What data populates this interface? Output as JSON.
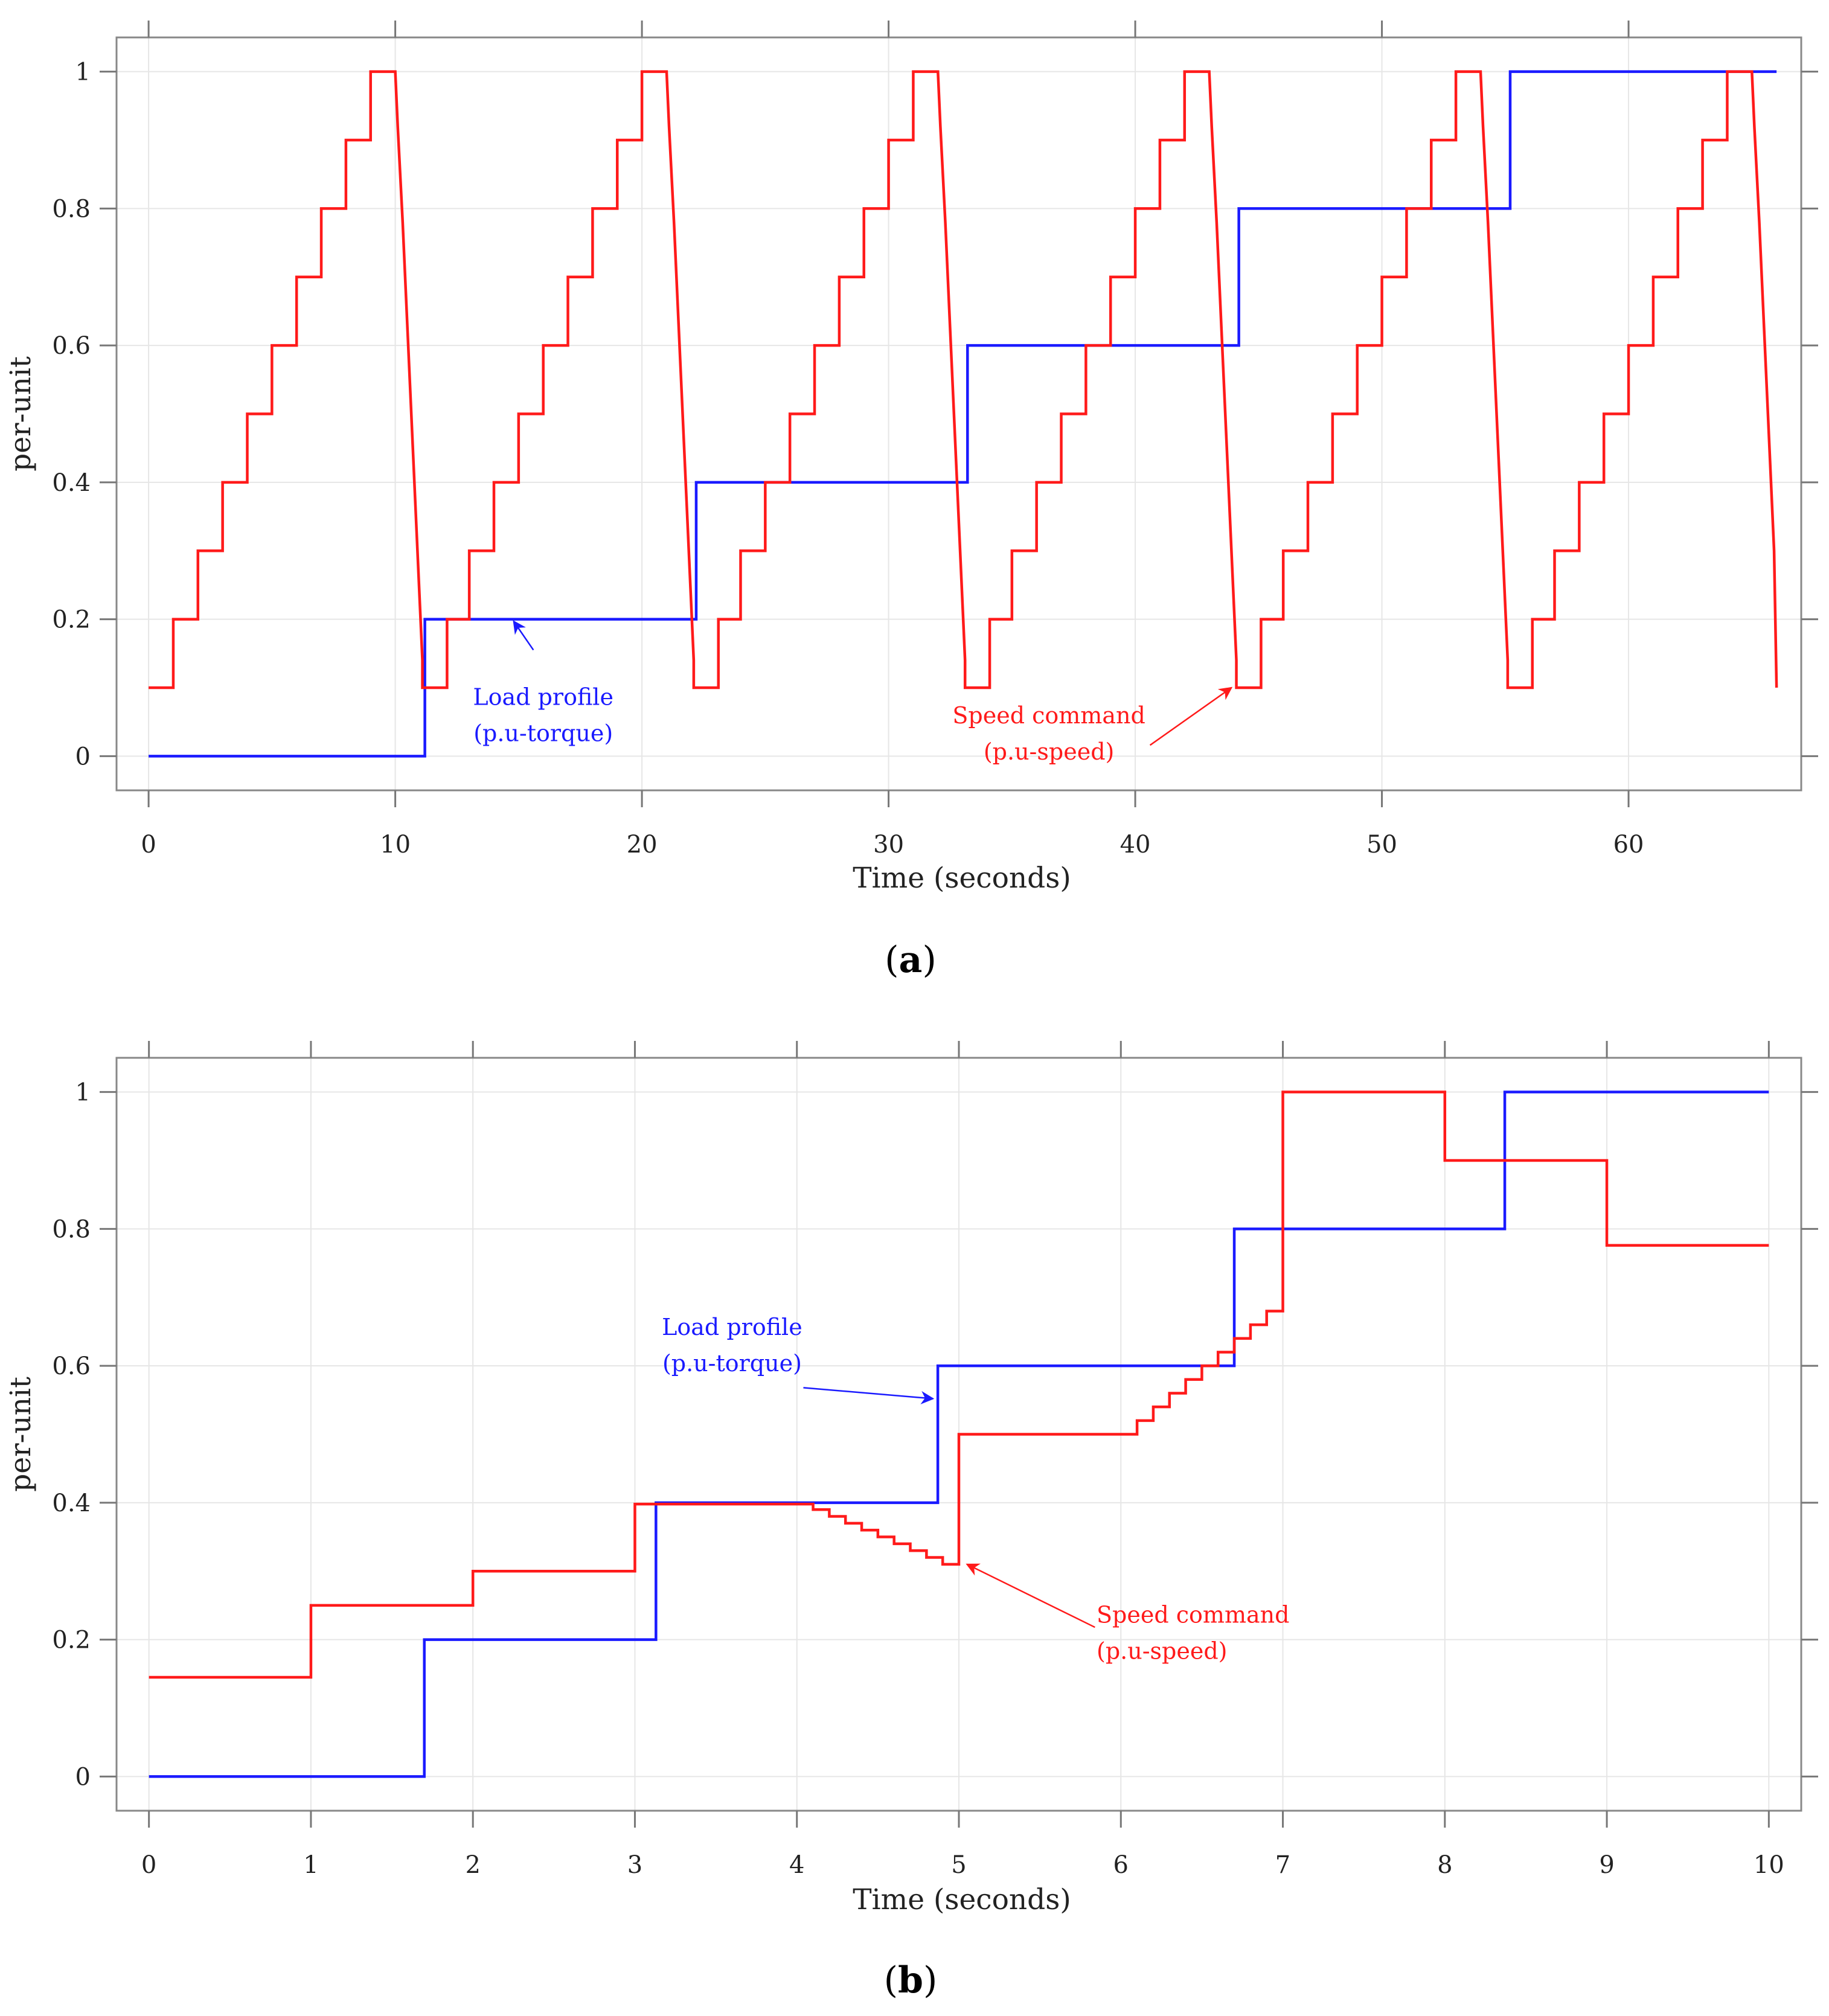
{
  "chart_data": [
    {
      "panel_label": "a",
      "type": "line",
      "xlabel": "Time (seconds)",
      "ylabel": "per-unit",
      "xlim": [
        -1.3,
        67
      ],
      "ylim": [
        -0.05,
        1.05
      ],
      "xticks": [
        0,
        10,
        20,
        30,
        40,
        50,
        60
      ],
      "yticks": [
        0,
        0.2,
        0.4,
        0.6,
        0.8,
        1
      ],
      "xtick_labels": [
        "0",
        "10",
        "20",
        "30",
        "40",
        "50",
        "60"
      ],
      "ytick_labels": [
        "0",
        "0.2",
        "0.4",
        "0.6",
        "0.8",
        "1"
      ],
      "grid": true,
      "colors": {
        "load": "#1a1aff",
        "speed": "#ff1a1a"
      },
      "series": [
        {
          "name": "Load profile (p.u-torque)",
          "color": "#1a1aff",
          "step": true,
          "x": [
            0,
            11.2,
            22.2,
            33.2,
            44.2,
            55.2,
            66
          ],
          "y": [
            0,
            0.2,
            0.4,
            0.6,
            0.8,
            1.0,
            1.0
          ]
        },
        {
          "name": "Speed command (p.u-speed)",
          "color": "#ff1a1a",
          "step": false,
          "x": [
            0,
            1,
            1,
            2,
            2,
            3,
            3,
            4,
            4,
            5,
            5,
            6,
            6,
            7,
            7,
            8,
            8,
            9,
            9,
            10,
            10.1,
            10.3,
            10.5,
            10.7,
            10.9,
            11.1,
            11.1,
            12.1,
            12.1,
            13,
            13,
            14,
            14,
            15,
            15,
            16,
            16,
            17,
            17,
            18,
            18,
            19,
            19,
            20,
            20,
            21,
            21.1,
            21.3,
            21.5,
            21.7,
            21.9,
            22.1,
            22.1,
            23.1,
            23.1,
            24,
            24,
            25,
            25,
            26,
            26,
            27,
            27,
            28,
            28,
            29,
            29,
            30,
            30,
            31,
            31,
            32,
            32.1,
            32.3,
            32.5,
            32.7,
            32.9,
            33.1,
            33.1,
            34.1,
            34.1,
            35,
            35,
            36,
            36,
            37,
            37,
            38,
            38,
            39,
            39,
            40,
            40,
            41,
            41,
            42,
            42,
            43,
            43.1,
            43.3,
            43.5,
            43.7,
            43.9,
            44.1,
            44.1,
            45.1,
            45.1,
            46,
            46,
            47,
            47,
            48,
            48,
            49,
            49,
            50,
            50,
            51,
            51,
            52,
            52,
            53,
            53,
            54,
            54.1,
            54.3,
            54.5,
            54.7,
            54.9,
            55.1,
            55.1,
            56.1,
            56.1,
            57,
            57,
            58,
            58,
            59,
            59,
            60,
            60,
            61,
            61,
            62,
            62,
            63,
            63,
            64,
            64,
            65,
            65.1,
            65.3,
            65.5,
            65.7,
            65.9,
            66
          ],
          "y": [
            0.1,
            0.1,
            0.2,
            0.2,
            0.3,
            0.3,
            0.4,
            0.4,
            0.5,
            0.5,
            0.6,
            0.6,
            0.7,
            0.7,
            0.8,
            0.8,
            0.9,
            0.9,
            1.0,
            1.0,
            0.92,
            0.78,
            0.62,
            0.46,
            0.3,
            0.14,
            0.1,
            0.1,
            0.2,
            0.2,
            0.3,
            0.3,
            0.4,
            0.4,
            0.5,
            0.5,
            0.6,
            0.6,
            0.7,
            0.7,
            0.8,
            0.8,
            0.9,
            0.9,
            1.0,
            1.0,
            0.92,
            0.78,
            0.62,
            0.46,
            0.3,
            0.14,
            0.1,
            0.1,
            0.2,
            0.2,
            0.3,
            0.3,
            0.4,
            0.4,
            0.5,
            0.5,
            0.6,
            0.6,
            0.7,
            0.7,
            0.8,
            0.8,
            0.9,
            0.9,
            1.0,
            1.0,
            0.92,
            0.78,
            0.62,
            0.46,
            0.3,
            0.14,
            0.1,
            0.1,
            0.2,
            0.2,
            0.3,
            0.3,
            0.4,
            0.4,
            0.5,
            0.5,
            0.6,
            0.6,
            0.7,
            0.7,
            0.8,
            0.8,
            0.9,
            0.9,
            1.0,
            1.0,
            0.92,
            0.78,
            0.62,
            0.46,
            0.3,
            0.14,
            0.1,
            0.1,
            0.2,
            0.2,
            0.3,
            0.3,
            0.4,
            0.4,
            0.5,
            0.5,
            0.6,
            0.6,
            0.7,
            0.7,
            0.8,
            0.8,
            0.9,
            0.9,
            1.0,
            1.0,
            0.92,
            0.78,
            0.62,
            0.46,
            0.3,
            0.14,
            0.1,
            0.1,
            0.2,
            0.2,
            0.3,
            0.3,
            0.4,
            0.4,
            0.5,
            0.5,
            0.6,
            0.6,
            0.7,
            0.7,
            0.8,
            0.8,
            0.9,
            0.9,
            1.0,
            1.0,
            0.92,
            0.78,
            0.62,
            0.46,
            0.3,
            0.1
          ]
        }
      ],
      "annotations": [
        {
          "lines": [
            "Load profile",
            "(p.u-torque)"
          ],
          "color": "#1a1aff",
          "text_at": [
            16.0,
            0.075
          ],
          "align": "middle",
          "arrow_from": [
            15.6,
            0.155
          ],
          "arrow_to": [
            14.8,
            0.197
          ]
        },
        {
          "lines": [
            "Speed command",
            "(p.u-speed)"
          ],
          "color": "#ff1a1a",
          "text_at": [
            36.5,
            0.048
          ],
          "align": "middle",
          "arrow_from": [
            40.6,
            0.016
          ],
          "arrow_to": [
            43.9,
            0.1
          ]
        }
      ]
    },
    {
      "panel_label": "b",
      "type": "line",
      "xlabel": "Time (seconds)",
      "ylabel": "per-unit",
      "xlim": [
        -0.2,
        10.2
      ],
      "ylim": [
        -0.05,
        1.05
      ],
      "xticks": [
        0,
        1,
        2,
        3,
        4,
        5,
        6,
        7,
        8,
        9,
        10
      ],
      "yticks": [
        0,
        0.2,
        0.4,
        0.6,
        0.8,
        1
      ],
      "xtick_labels": [
        "0",
        "1",
        "2",
        "3",
        "4",
        "5",
        "6",
        "7",
        "8",
        "9",
        "10"
      ],
      "ytick_labels": [
        "0",
        "0.2",
        "0.4",
        "0.6",
        "0.8",
        "1"
      ],
      "grid": true,
      "colors": {
        "load": "#1a1aff",
        "speed": "#ff1a1a"
      },
      "series": [
        {
          "name": "Load profile (p.u-torque)",
          "color": "#1a1aff",
          "step": true,
          "x": [
            0,
            1.7,
            3.13,
            4.87,
            6.7,
            8.37,
            10
          ],
          "y": [
            0,
            0.2,
            0.4,
            0.6,
            0.8,
            1.0,
            1.0
          ]
        },
        {
          "name": "Speed command (p.u-speed)",
          "color": "#ff1a1a",
          "step": true,
          "x": [
            0,
            1,
            2,
            3,
            4.1,
            4.2,
            4.3,
            4.4,
            4.5,
            4.6,
            4.7,
            4.8,
            4.9,
            5,
            6.1,
            6.2,
            6.3,
            6.4,
            6.5,
            6.6,
            6.7,
            6.8,
            6.9,
            7,
            8,
            9,
            10
          ],
          "y": [
            0.145,
            0.25,
            0.3,
            0.398,
            0.39,
            0.38,
            0.37,
            0.36,
            0.35,
            0.34,
            0.33,
            0.32,
            0.31,
            0.5,
            0.52,
            0.54,
            0.56,
            0.58,
            0.6,
            0.62,
            0.64,
            0.66,
            0.68,
            1.0,
            0.9,
            0.776,
            0.776
          ]
        }
      ],
      "annotations": [
        {
          "lines": [
            "Load profile",
            "(p.u-torque)"
          ],
          "color": "#1a1aff",
          "text_at": [
            3.6,
            0.645
          ],
          "align": "middle",
          "arrow_from": [
            4.04,
            0.568
          ],
          "arrow_to": [
            4.84,
            0.552
          ]
        },
        {
          "lines": [
            "Speed command",
            "(p.u-speed)"
          ],
          "color": "#ff1a1a",
          "text_at": [
            5.85,
            0.225
          ],
          "align": "start",
          "arrow_from": [
            5.84,
            0.218
          ],
          "arrow_to": [
            5.05,
            0.31
          ]
        }
      ]
    }
  ]
}
